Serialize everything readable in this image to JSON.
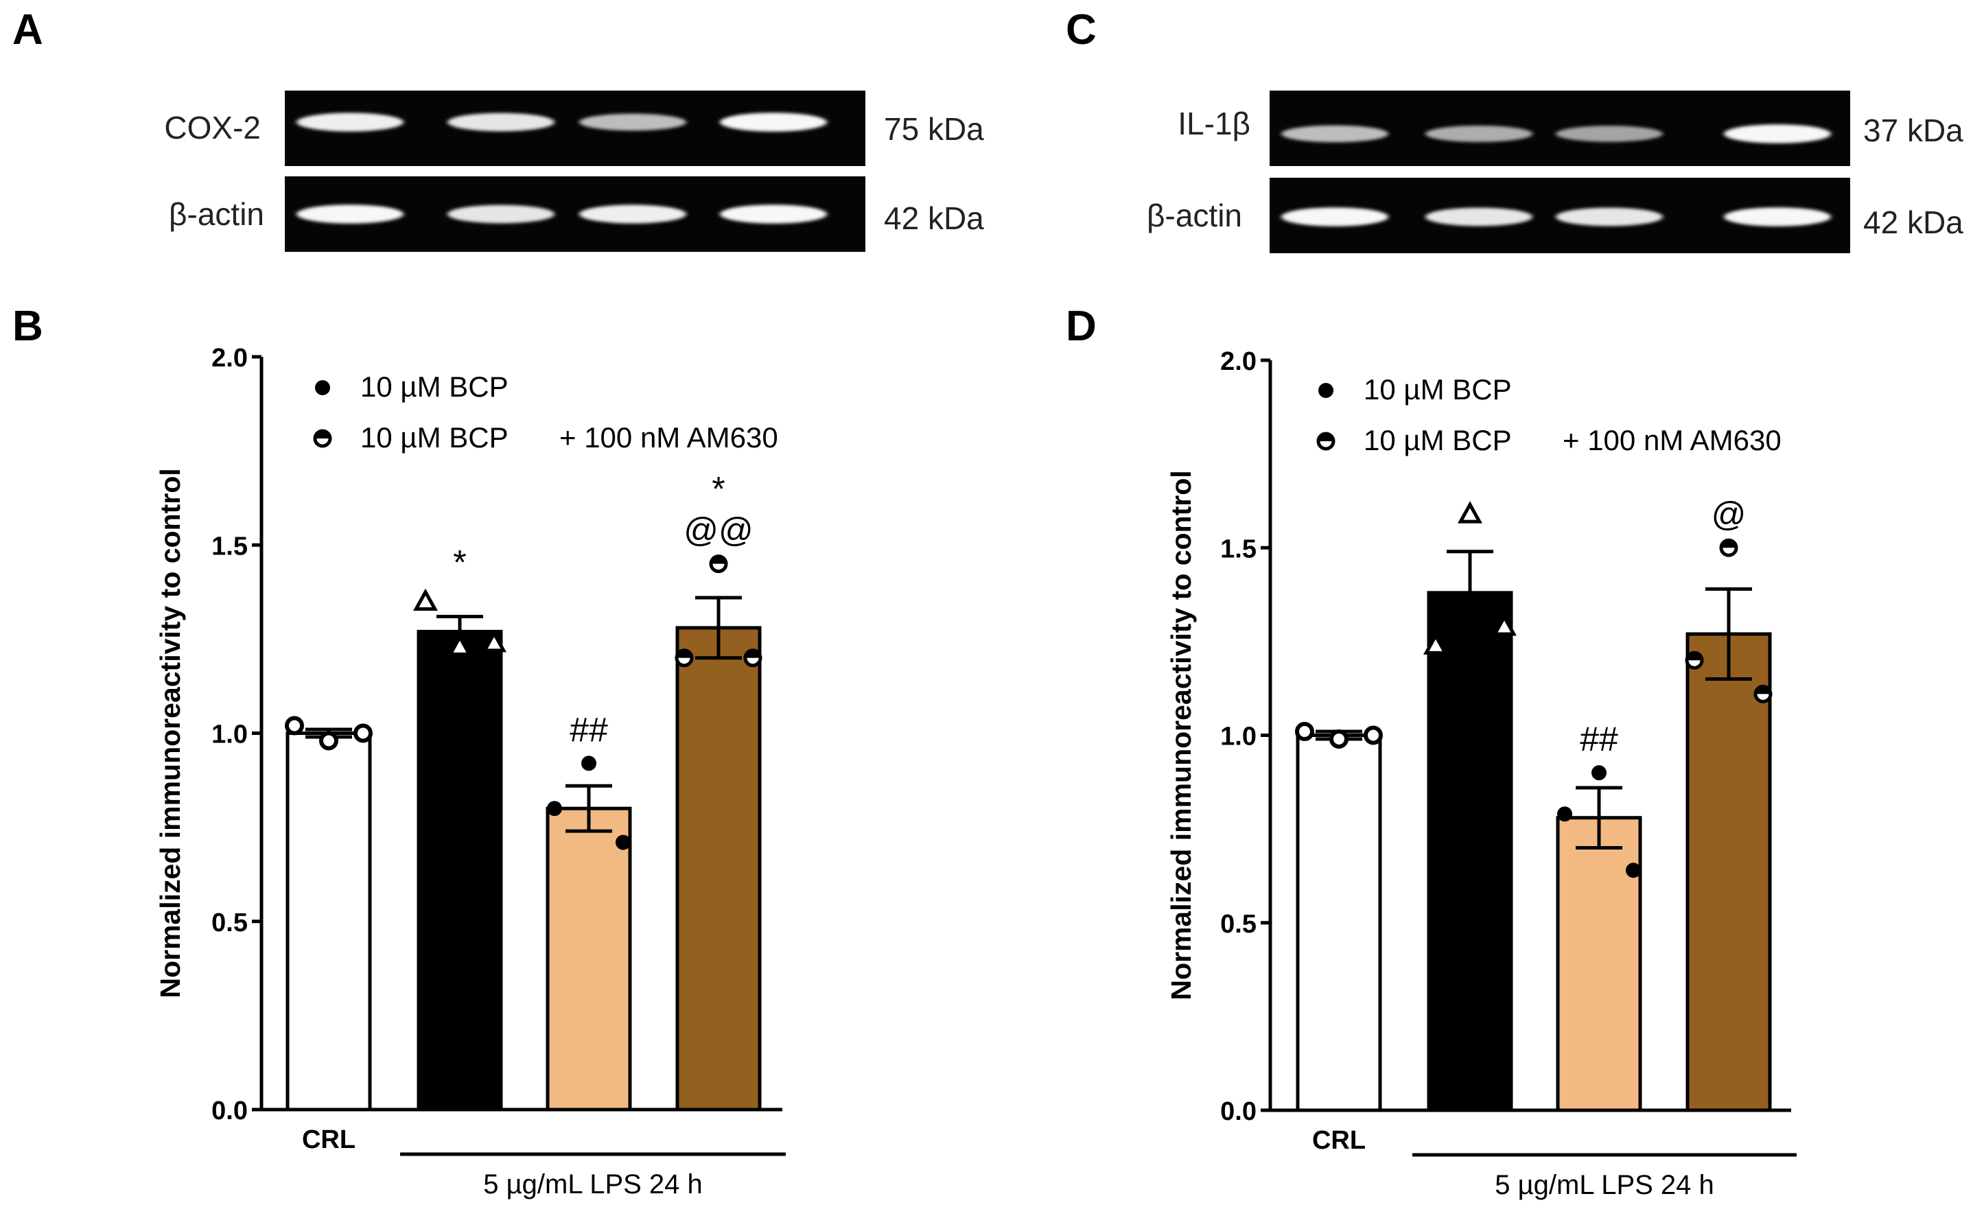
{
  "colors": {
    "crl_bar": "#ffffff",
    "lps_bar": "#000000",
    "bcp_bar": "#f2b983",
    "bcp_am630_bar": "#93601f",
    "blot_background": "#050505",
    "band": "#e8e8e8"
  },
  "panels": {
    "a": {
      "letter": "A",
      "rows": [
        {
          "label": "COX-2",
          "size": "75 kDa",
          "lane_intensity": [
            0.9,
            0.85,
            0.6,
            0.95
          ]
        },
        {
          "label": "β-actin",
          "size": "42 kDa",
          "lane_intensity": [
            0.95,
            0.85,
            0.9,
            0.95
          ]
        }
      ]
    },
    "c": {
      "letter": "C",
      "rows": [
        {
          "label": "IL-1β",
          "size": "37 kDa",
          "lane_intensity": [
            0.6,
            0.5,
            0.45,
            0.95
          ]
        },
        {
          "label": "β-actin",
          "size": "42 kDa",
          "lane_intensity": [
            0.95,
            0.85,
            0.85,
            0.95
          ]
        }
      ]
    },
    "b": {
      "letter": "B"
    },
    "d": {
      "letter": "D"
    }
  },
  "chart_data": [
    {
      "panel": "B",
      "type": "bar",
      "ylabel": "Normalized immunoreactivity to control",
      "ylim": [
        0,
        2.0
      ],
      "yticks": [
        "0.0",
        "0.5",
        "1.0",
        "1.5",
        "2.0"
      ],
      "categories": [
        "CRL",
        "5 µg/mL LPS 24 h",
        "10 µM BCP",
        "10 µM BCP + 100 nM AM630"
      ],
      "x_axis": {
        "crl_label": "CRL",
        "group_label": "5 µg/mL LPS 24 h"
      },
      "legend": [
        {
          "marker": "filled-circle",
          "label": "10 µM BCP"
        },
        {
          "marker": "half-circle",
          "label": "10 µM BCP",
          "label2": "+ 100 nM AM630"
        }
      ],
      "values": [
        1.0,
        1.27,
        0.8,
        1.28
      ],
      "sem": [
        0.01,
        0.04,
        0.06,
        0.08
      ],
      "points": [
        [
          0.98,
          1.02,
          1.0
        ],
        [
          1.23,
          1.35,
          1.24
        ],
        [
          0.92,
          0.8,
          0.71
        ],
        [
          1.45,
          1.2,
          1.2
        ]
      ],
      "point_markers": [
        "open-circle",
        "triangle",
        "filled-circle",
        "half-circle"
      ],
      "annotations": [
        [
          "",
          "",
          ""
        ],
        [
          "*",
          "",
          ""
        ],
        [
          "##",
          "",
          ""
        ],
        [
          "*",
          "@@",
          ""
        ]
      ]
    },
    {
      "panel": "D",
      "type": "bar",
      "ylabel": "Normalized immunoreactivity to control",
      "ylim": [
        0,
        2.0
      ],
      "yticks": [
        "0.0",
        "0.5",
        "1.0",
        "1.5",
        "2.0"
      ],
      "categories": [
        "CRL",
        "5 µg/mL LPS 24 h",
        "10 µM BCP",
        "10 µM BCP + 100 nM AM630"
      ],
      "x_axis": {
        "crl_label": "CRL",
        "group_label": "5 µg/mL LPS 24 h"
      },
      "legend": [
        {
          "marker": "filled-circle",
          "label": "10 µM BCP"
        },
        {
          "marker": "half-circle",
          "label": "10 µM BCP",
          "label2": "+ 100 nM AM630"
        }
      ],
      "values": [
        1.0,
        1.38,
        0.78,
        1.27
      ],
      "sem": [
        0.01,
        0.11,
        0.08,
        0.12
      ],
      "points": [
        [
          0.99,
          1.01,
          1.0
        ],
        [
          1.59,
          1.24,
          1.29
        ],
        [
          0.9,
          0.79,
          0.64
        ],
        [
          1.5,
          1.2,
          1.11
        ]
      ],
      "point_markers": [
        "open-circle",
        "triangle",
        "filled-circle",
        "half-circle"
      ],
      "annotations": [
        [
          "",
          "",
          ""
        ],
        [
          "",
          "",
          ""
        ],
        [
          "##",
          "",
          ""
        ],
        [
          "",
          "@",
          ""
        ]
      ]
    }
  ]
}
